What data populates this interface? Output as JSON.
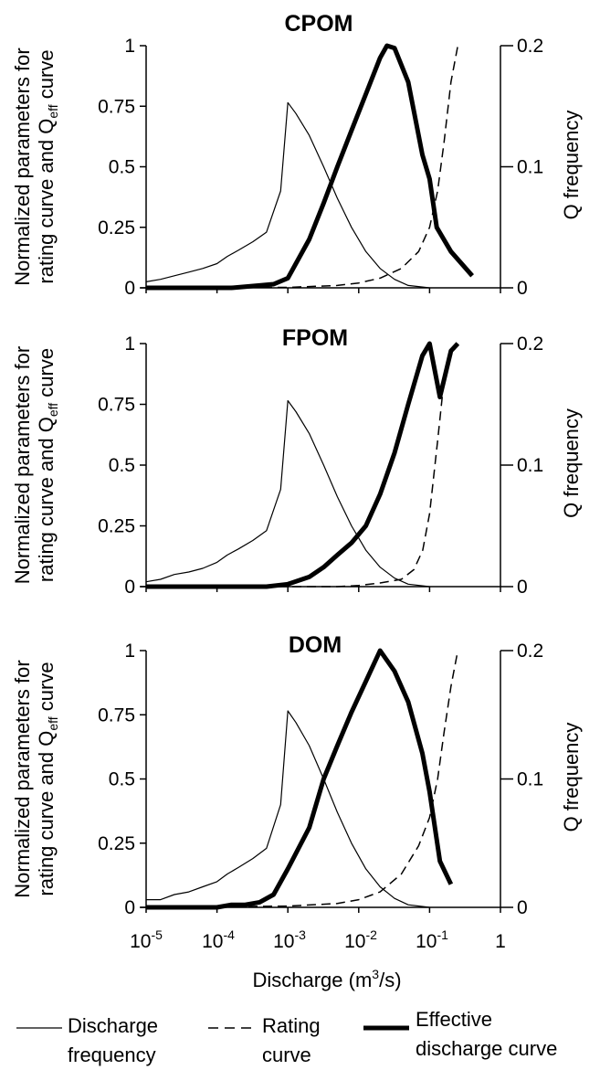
{
  "figure": {
    "ylabel_left_line1": "Normalized parameters for",
    "ylabel_left_line2_pre": "rating curve and Q",
    "ylabel_left_line2_sub": "eff",
    "ylabel_left_line2_post": " curve",
    "ylabel_right": "Q frequency",
    "xlabel_pre": "Discharge (m",
    "xlabel_sup": "3",
    "xlabel_post": "/s)",
    "x_tick_base": "10",
    "x_tick_exponents": [
      "-5",
      "-4",
      "-3",
      "-2",
      "-1",
      ""
    ],
    "x_tick_last": "1",
    "left_ticks": [
      "0",
      "0.25",
      "0.5",
      "0.75",
      "1"
    ],
    "right_ticks": [
      "0",
      "0.1",
      "0.2"
    ]
  },
  "legend": {
    "discharge_frequency_line1": "Discharge",
    "discharge_frequency_line2": "frequency",
    "rating_curve_line1": "Rating",
    "rating_curve_line2": "curve",
    "effective_line1": "Effective",
    "effective_line2": "discharge curve"
  },
  "colors": {
    "lines": "#000000",
    "background": "#ffffff"
  },
  "chart_data": [
    {
      "type": "line",
      "title": "CPOM",
      "x_scale": "log",
      "xlim": [
        1e-05,
        1
      ],
      "ylim_left": [
        0,
        1
      ],
      "ylim_right": [
        0,
        0.2
      ],
      "series": [
        {
          "name": "Discharge frequency",
          "axis": "right",
          "style": "thin-solid",
          "x": [
            1e-05,
            1.6e-05,
            2.5e-05,
            4e-05,
            6.3e-05,
            0.0001,
            0.00014,
            0.0002,
            0.00032,
            0.0005,
            0.00079,
            0.001,
            0.0013,
            0.002,
            0.0032,
            0.005,
            0.0079,
            0.0126,
            0.02,
            0.032,
            0.05,
            0.1
          ],
          "y": [
            0.005,
            0.007,
            0.01,
            0.013,
            0.016,
            0.02,
            0.026,
            0.031,
            0.038,
            0.046,
            0.08,
            0.153,
            0.144,
            0.126,
            0.1,
            0.074,
            0.05,
            0.03,
            0.016,
            0.007,
            0.002,
            0
          ]
        },
        {
          "name": "Rating curve",
          "axis": "left",
          "style": "dashed",
          "x": [
            1e-05,
            0.001,
            0.005,
            0.01,
            0.02,
            0.04,
            0.07,
            0.1,
            0.13,
            0.16,
            0.2,
            0.25
          ],
          "y": [
            0,
            0.002,
            0.01,
            0.02,
            0.04,
            0.08,
            0.15,
            0.25,
            0.4,
            0.6,
            0.85,
            1.0
          ]
        },
        {
          "name": "Effective discharge curve",
          "axis": "left",
          "style": "thick-solid",
          "x": [
            1e-05,
            0.0001,
            0.00016,
            0.00025,
            0.0004,
            0.00063,
            0.001,
            0.002,
            0.0032,
            0.005,
            0.0079,
            0.0126,
            0.02,
            0.025,
            0.032,
            0.05,
            0.079,
            0.1,
            0.126,
            0.2,
            0.4
          ],
          "y": [
            0,
            0,
            0,
            0.005,
            0.01,
            0.015,
            0.04,
            0.2,
            0.35,
            0.5,
            0.65,
            0.8,
            0.95,
            1.0,
            0.99,
            0.85,
            0.55,
            0.45,
            0.25,
            0.15,
            0.05
          ]
        }
      ]
    },
    {
      "type": "line",
      "title": "FPOM",
      "x_scale": "log",
      "xlim": [
        1e-05,
        1
      ],
      "ylim_left": [
        0,
        1
      ],
      "ylim_right": [
        0,
        0.2
      ],
      "series": [
        {
          "name": "Discharge frequency",
          "axis": "right",
          "style": "thin-solid",
          "x": [
            1e-05,
            1.6e-05,
            2.5e-05,
            4e-05,
            6.3e-05,
            0.0001,
            0.00014,
            0.0002,
            0.00032,
            0.0005,
            0.00079,
            0.001,
            0.0013,
            0.002,
            0.0032,
            0.005,
            0.0079,
            0.0126,
            0.02,
            0.032,
            0.05,
            0.1
          ],
          "y": [
            0.004,
            0.006,
            0.01,
            0.012,
            0.015,
            0.02,
            0.026,
            0.031,
            0.038,
            0.046,
            0.08,
            0.153,
            0.144,
            0.126,
            0.1,
            0.074,
            0.05,
            0.03,
            0.016,
            0.007,
            0.002,
            0
          ]
        },
        {
          "name": "Rating curve",
          "axis": "left",
          "style": "dashed",
          "x": [
            1e-05,
            0.005,
            0.01,
            0.02,
            0.04,
            0.06,
            0.08,
            0.1,
            0.13,
            0.16,
            0.2,
            0.25
          ],
          "y": [
            0,
            0,
            0.005,
            0.015,
            0.03,
            0.07,
            0.15,
            0.3,
            0.6,
            0.85,
            0.95,
            1.0
          ]
        },
        {
          "name": "Effective discharge curve",
          "axis": "left",
          "style": "thick-solid",
          "x": [
            1e-05,
            0.0002,
            0.0005,
            0.001,
            0.002,
            0.0032,
            0.005,
            0.0079,
            0.0126,
            0.02,
            0.032,
            0.05,
            0.079,
            0.1,
            0.14,
            0.2,
            0.25
          ],
          "y": [
            0,
            0,
            0,
            0.01,
            0.04,
            0.08,
            0.13,
            0.18,
            0.25,
            0.38,
            0.55,
            0.75,
            0.95,
            1.0,
            0.78,
            0.97,
            1.0
          ]
        }
      ]
    },
    {
      "type": "line",
      "title": "DOM",
      "x_scale": "log",
      "xlim": [
        1e-05,
        1
      ],
      "ylim_left": [
        0,
        1
      ],
      "ylim_right": [
        0,
        0.2
      ],
      "series": [
        {
          "name": "Discharge frequency",
          "axis": "right",
          "style": "thin-solid",
          "x": [
            1e-05,
            1.6e-05,
            2.5e-05,
            4e-05,
            6.3e-05,
            0.0001,
            0.00014,
            0.0002,
            0.00032,
            0.0005,
            0.00079,
            0.001,
            0.0013,
            0.002,
            0.0032,
            0.005,
            0.0079,
            0.0126,
            0.02,
            0.032,
            0.05,
            0.1
          ],
          "y": [
            0.006,
            0.006,
            0.01,
            0.012,
            0.016,
            0.02,
            0.026,
            0.031,
            0.038,
            0.046,
            0.08,
            0.153,
            0.144,
            0.126,
            0.1,
            0.074,
            0.05,
            0.03,
            0.016,
            0.007,
            0.002,
            0
          ]
        },
        {
          "name": "Rating curve",
          "axis": "left",
          "style": "dashed",
          "x": [
            1e-05,
            0.001,
            0.005,
            0.01,
            0.02,
            0.04,
            0.07,
            0.1,
            0.13,
            0.16,
            0.2,
            0.25
          ],
          "y": [
            0,
            0.005,
            0.015,
            0.03,
            0.06,
            0.13,
            0.24,
            0.35,
            0.5,
            0.68,
            0.86,
            1.0
          ]
        },
        {
          "name": "Effective discharge curve",
          "axis": "left",
          "style": "thick-solid",
          "x": [
            1e-05,
            0.0001,
            0.00016,
            0.00025,
            0.0004,
            0.00063,
            0.001,
            0.002,
            0.0032,
            0.005,
            0.0079,
            0.0126,
            0.02,
            0.032,
            0.05,
            0.079,
            0.1,
            0.14,
            0.2
          ],
          "y": [
            0,
            0,
            0.01,
            0.01,
            0.02,
            0.05,
            0.15,
            0.31,
            0.5,
            0.63,
            0.76,
            0.88,
            1.0,
            0.92,
            0.8,
            0.6,
            0.45,
            0.18,
            0.09
          ]
        }
      ]
    }
  ]
}
